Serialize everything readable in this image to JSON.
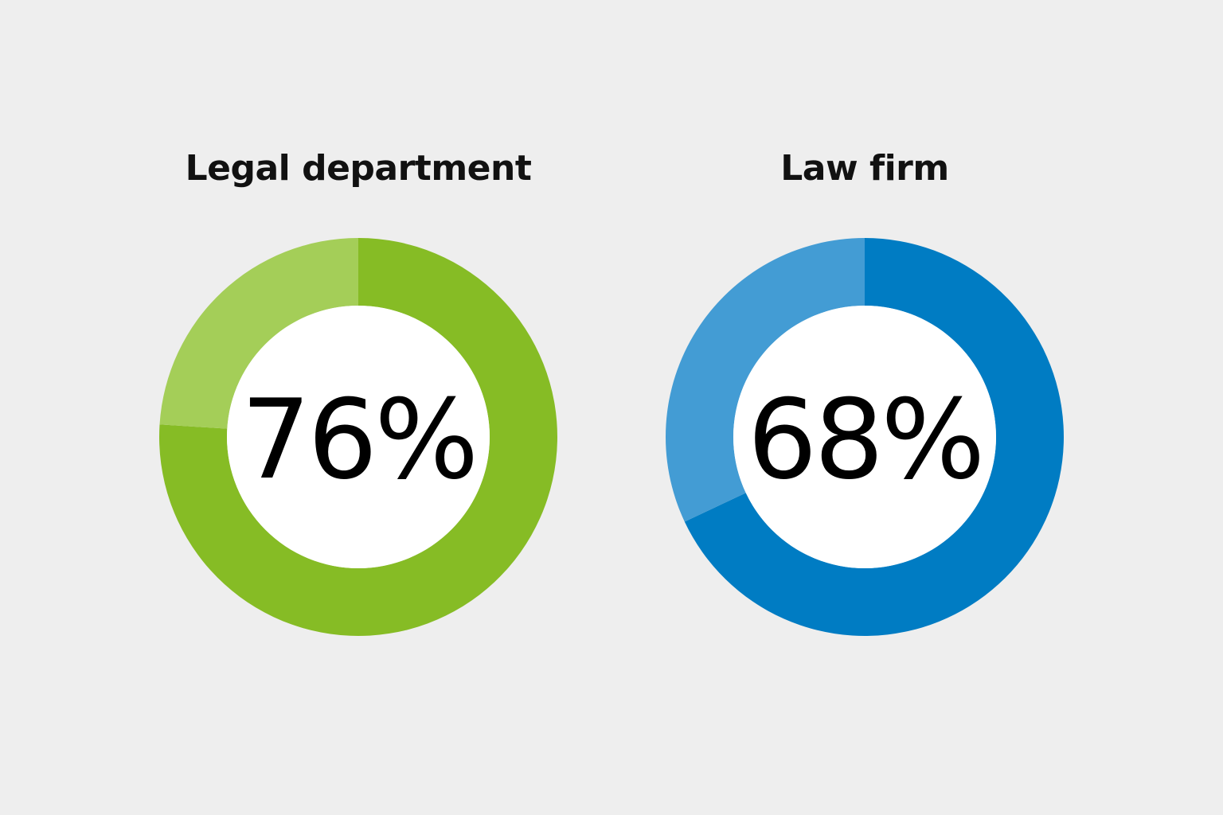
{
  "chart_data": [
    {
      "type": "pie",
      "title": "Legal department",
      "value": 76,
      "value_label": "76%",
      "slices": [
        {
          "value": 76,
          "color": "#86bc25"
        },
        {
          "value": 24,
          "color": "#a4ce58"
        }
      ]
    },
    {
      "type": "pie",
      "title": "Law firm",
      "value": 68,
      "value_label": "68%",
      "slices": [
        {
          "value": 68,
          "color": "#007cc3"
        },
        {
          "value": 32,
          "color": "#439cd4"
        }
      ]
    }
  ],
  "background_color": "#eeeeee"
}
